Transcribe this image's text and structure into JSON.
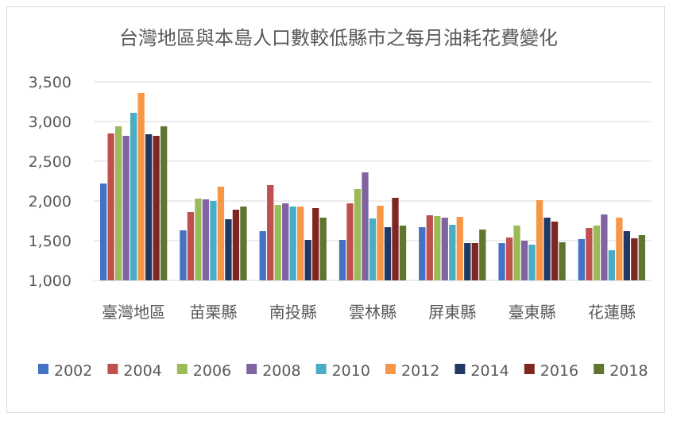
{
  "chart_data": {
    "type": "bar",
    "title": "台灣地區與本島人口數較低縣市之每月油耗花費變化",
    "xlabel": "",
    "ylabel": "",
    "ylim": [
      1000,
      3500
    ],
    "yticks": [
      1000,
      1500,
      2000,
      2500,
      3000,
      3500
    ],
    "ytick_labels": [
      "1,000",
      "1,500",
      "2,000",
      "2,500",
      "3,000",
      "3,500"
    ],
    "grid": true,
    "legend_position": "bottom",
    "categories": [
      "臺灣地區",
      "苗栗縣",
      "南投縣",
      "雲林縣",
      "屏東縣",
      "臺東縣",
      "花蓮縣"
    ],
    "series": [
      {
        "name": "2002",
        "color": "#4472C4",
        "values": [
          2220,
          1630,
          1620,
          1510,
          1670,
          1470,
          1520
        ]
      },
      {
        "name": "2004",
        "color": "#C0504D",
        "values": [
          2850,
          1860,
          2200,
          1970,
          1820,
          1540,
          1660
        ]
      },
      {
        "name": "2006",
        "color": "#9BBB59",
        "values": [
          2940,
          2030,
          1950,
          2150,
          1810,
          1690,
          1690
        ]
      },
      {
        "name": "2008",
        "color": "#8064A2",
        "values": [
          2820,
          2020,
          1970,
          2360,
          1790,
          1500,
          1830
        ]
      },
      {
        "name": "2010",
        "color": "#4BACC6",
        "values": [
          3110,
          2000,
          1930,
          1780,
          1700,
          1450,
          1380
        ]
      },
      {
        "name": "2012",
        "color": "#F79646",
        "values": [
          3360,
          2180,
          1930,
          1940,
          1800,
          2010,
          1790
        ]
      },
      {
        "name": "2014",
        "color": "#1F3864",
        "values": [
          2840,
          1770,
          1510,
          1670,
          1470,
          1790,
          1620
        ]
      },
      {
        "name": "2016",
        "color": "#7F2623",
        "values": [
          2820,
          1890,
          1910,
          2040,
          1470,
          1740,
          1530
        ]
      },
      {
        "name": "2018",
        "color": "#5F7530",
        "values": [
          2940,
          1930,
          1790,
          1690,
          1640,
          1480,
          1570
        ]
      }
    ]
  }
}
